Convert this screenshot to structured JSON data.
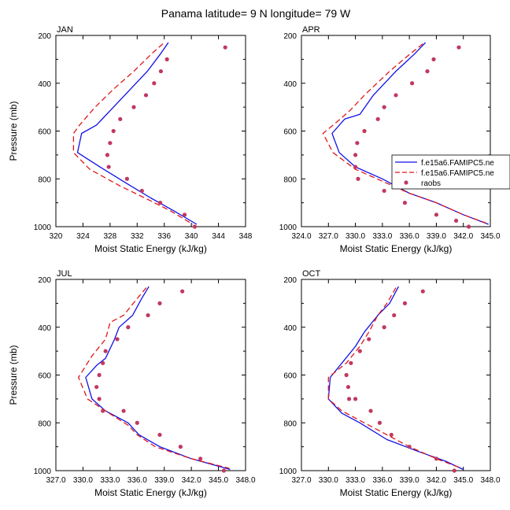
{
  "figure": {
    "title": "Panama  latitude= 9 N longitude= 79 W"
  },
  "colors": {
    "model1": "#1010e6",
    "model2": "#e01818",
    "raobs": "#c0395e"
  },
  "chart_data": [
    {
      "type": "line",
      "panel_label": "JAN",
      "xlabel": "Moist Static Energy (kJ/kg)",
      "ylabel": "Pressure (mb)",
      "xlim": [
        320,
        348
      ],
      "ylim": [
        200,
        1000
      ],
      "y_reversed": true,
      "xticks": [
        320,
        324,
        328,
        332,
        336,
        340,
        344,
        348
      ],
      "xtick_labels": [
        "320",
        "324",
        "328",
        "332",
        "336",
        "340",
        "344",
        "348"
      ],
      "yticks": [
        200,
        400,
        600,
        800,
        1000
      ],
      "ytick_labels": [
        "200",
        "400",
        "600",
        "800",
        "1000"
      ],
      "legend": null,
      "series": [
        {
          "style": "solid-blue",
          "x": [
            336.6,
            335.5,
            333.5,
            331.0,
            328.5,
            326.0,
            323.8,
            323.2,
            326.5,
            330.5,
            334.0,
            337.5,
            340.8
          ],
          "y": [
            230,
            275,
            350,
            425,
            500,
            575,
            610,
            690,
            750,
            820,
            880,
            935,
            990
          ]
        },
        {
          "style": "dashed-red",
          "x": [
            335.8,
            334.2,
            331.5,
            328.5,
            325.8,
            323.5,
            322.6,
            322.6,
            325.0,
            329.5,
            333.5,
            337.0,
            340.2
          ],
          "y": [
            235,
            275,
            350,
            425,
            500,
            575,
            610,
            690,
            760,
            830,
            885,
            935,
            990
          ]
        },
        {
          "style": "dots",
          "x": [
            345.0,
            336.4,
            335.5,
            334.5,
            333.3,
            331.5,
            329.5,
            328.5,
            328.0,
            327.6,
            327.8,
            330.5,
            332.7,
            335.4,
            339.0,
            340.5
          ],
          "y": [
            250,
            300,
            350,
            400,
            450,
            500,
            550,
            600,
            650,
            700,
            750,
            800,
            850,
            900,
            950,
            1000
          ]
        }
      ]
    },
    {
      "type": "line",
      "panel_label": "APR",
      "xlabel": "Moist Static Energy (kJ/kg)",
      "ylabel": "",
      "xlim": [
        324,
        345
      ],
      "ylim": [
        200,
        1000
      ],
      "y_reversed": true,
      "xticks": [
        324,
        327,
        330,
        333,
        336,
        339,
        342,
        345
      ],
      "xtick_labels": [
        "324.0",
        "327.0",
        "330.0",
        "333.0",
        "336.0",
        "339.0",
        "342.0",
        "345.0"
      ],
      "yticks": [
        200,
        400,
        600,
        800,
        1000
      ],
      "ytick_labels": [
        "200",
        "400",
        "600",
        "800",
        "1000"
      ],
      "legend": {
        "position": "right",
        "labels": [
          "f.e15a6.FAMIPC5.ne",
          "f.e15a6.FAMIPC5.ne",
          "raobs"
        ]
      },
      "series": [
        {
          "style": "solid-blue",
          "x": [
            337.8,
            336.5,
            334.5,
            332.0,
            330.5,
            328.8,
            327.4,
            328.2,
            330.0,
            333.0,
            336.0,
            339.0,
            342.0,
            344.8
          ],
          "y": [
            230,
            280,
            350,
            450,
            530,
            550,
            610,
            690,
            750,
            800,
            860,
            900,
            950,
            990
          ]
        },
        {
          "style": "dashed-red",
          "x": [
            337.5,
            336.0,
            333.8,
            331.0,
            329.5,
            328.0,
            326.4,
            327.5,
            330.0,
            333.0,
            336.0,
            339.0,
            342.0,
            344.5
          ],
          "y": [
            235,
            280,
            350,
            450,
            510,
            560,
            610,
            690,
            760,
            810,
            860,
            900,
            950,
            985
          ]
        },
        {
          "style": "dots",
          "x": [
            341.5,
            338.7,
            338.0,
            336.3,
            334.5,
            333.2,
            332.5,
            331.0,
            330.2,
            330.0,
            330.0,
            330.3,
            333.2,
            335.5,
            339.0,
            341.2,
            342.6
          ],
          "y": [
            250,
            300,
            350,
            400,
            450,
            500,
            550,
            600,
            650,
            700,
            750,
            800,
            850,
            900,
            950,
            975,
            1000
          ]
        }
      ]
    },
    {
      "type": "line",
      "panel_label": "JUL",
      "xlabel": "Moist Static Energy (kJ/kg)",
      "ylabel": "Pressure (mb)",
      "xlim": [
        327,
        348
      ],
      "ylim": [
        200,
        1000
      ],
      "y_reversed": true,
      "xticks": [
        327,
        330,
        333,
        336,
        339,
        342,
        345,
        348
      ],
      "xtick_labels": [
        "327.0",
        "330.0",
        "333.0",
        "336.0",
        "339.0",
        "342.0",
        "345.0",
        "348.0"
      ],
      "yticks": [
        200,
        400,
        600,
        800,
        1000
      ],
      "ytick_labels": [
        "200",
        "400",
        "600",
        "800",
        "1000"
      ],
      "legend": null,
      "series": [
        {
          "style": "solid-blue",
          "x": [
            337.3,
            336.5,
            335.5,
            334.0,
            333.5,
            332.5,
            331.5,
            330.3,
            331.0,
            332.5,
            335.0,
            336.2,
            338.5,
            342.0,
            346.3
          ],
          "y": [
            230,
            280,
            350,
            400,
            450,
            530,
            560,
            610,
            700,
            750,
            800,
            850,
            900,
            950,
            995
          ]
        },
        {
          "style": "dashed-red",
          "x": [
            337.0,
            336.0,
            334.5,
            333.0,
            332.5,
            331.0,
            329.5,
            330.5,
            332.5,
            335.0,
            336.0,
            338.0,
            342.0,
            346.2
          ],
          "y": [
            235,
            280,
            350,
            380,
            450,
            520,
            610,
            700,
            750,
            810,
            850,
            900,
            950,
            990
          ]
        },
        {
          "style": "dots",
          "x": [
            341.0,
            338.5,
            337.2,
            335.0,
            333.8,
            332.5,
            332.2,
            331.8,
            331.5,
            331.8,
            332.2,
            334.5,
            336.0,
            338.5,
            340.8,
            343.0,
            345.6
          ],
          "y": [
            250,
            300,
            350,
            400,
            450,
            500,
            550,
            600,
            650,
            700,
            750,
            750,
            800,
            850,
            900,
            950,
            1000
          ]
        }
      ]
    },
    {
      "type": "line",
      "panel_label": "OCT",
      "xlabel": "Moist Static Energy (kJ/kg)",
      "ylabel": "",
      "xlim": [
        327,
        348
      ],
      "ylim": [
        200,
        1000
      ],
      "y_reversed": true,
      "xticks": [
        327,
        330,
        333,
        336,
        339,
        342,
        345,
        348
      ],
      "xtick_labels": [
        "327.0",
        "330.0",
        "333.0",
        "336.0",
        "339.0",
        "342.0",
        "345.0",
        "348.0"
      ],
      "yticks": [
        200,
        400,
        600,
        800,
        1000
      ],
      "ytick_labels": [
        "200",
        "400",
        "600",
        "800",
        "1000"
      ],
      "legend": null,
      "series": [
        {
          "style": "solid-blue",
          "x": [
            337.8,
            336.8,
            335.5,
            334.0,
            333.0,
            331.5,
            330.2,
            330.0,
            331.5,
            333.5,
            336.5,
            340.0,
            343.0,
            345.0
          ],
          "y": [
            230,
            300,
            350,
            420,
            480,
            550,
            610,
            700,
            760,
            800,
            870,
            920,
            960,
            995
          ]
        },
        {
          "style": "dashed-red",
          "x": [
            337.5,
            336.5,
            335.5,
            334.5,
            333.5,
            332.0,
            330.0,
            330.0,
            331.5,
            334.0,
            336.5,
            339.0,
            342.0,
            344.8
          ],
          "y": [
            235,
            300,
            350,
            420,
            480,
            550,
            610,
            700,
            750,
            800,
            850,
            900,
            950,
            990
          ]
        },
        {
          "style": "dots",
          "x": [
            340.5,
            338.5,
            337.3,
            336.2,
            334.5,
            333.5,
            332.5,
            332.0,
            332.2,
            332.3,
            333.0,
            334.7,
            335.7,
            337.0,
            339.0,
            342.0,
            344.0
          ],
          "y": [
            250,
            300,
            350,
            400,
            450,
            500,
            550,
            600,
            650,
            700,
            700,
            750,
            800,
            850,
            900,
            950,
            1000
          ]
        }
      ]
    }
  ]
}
